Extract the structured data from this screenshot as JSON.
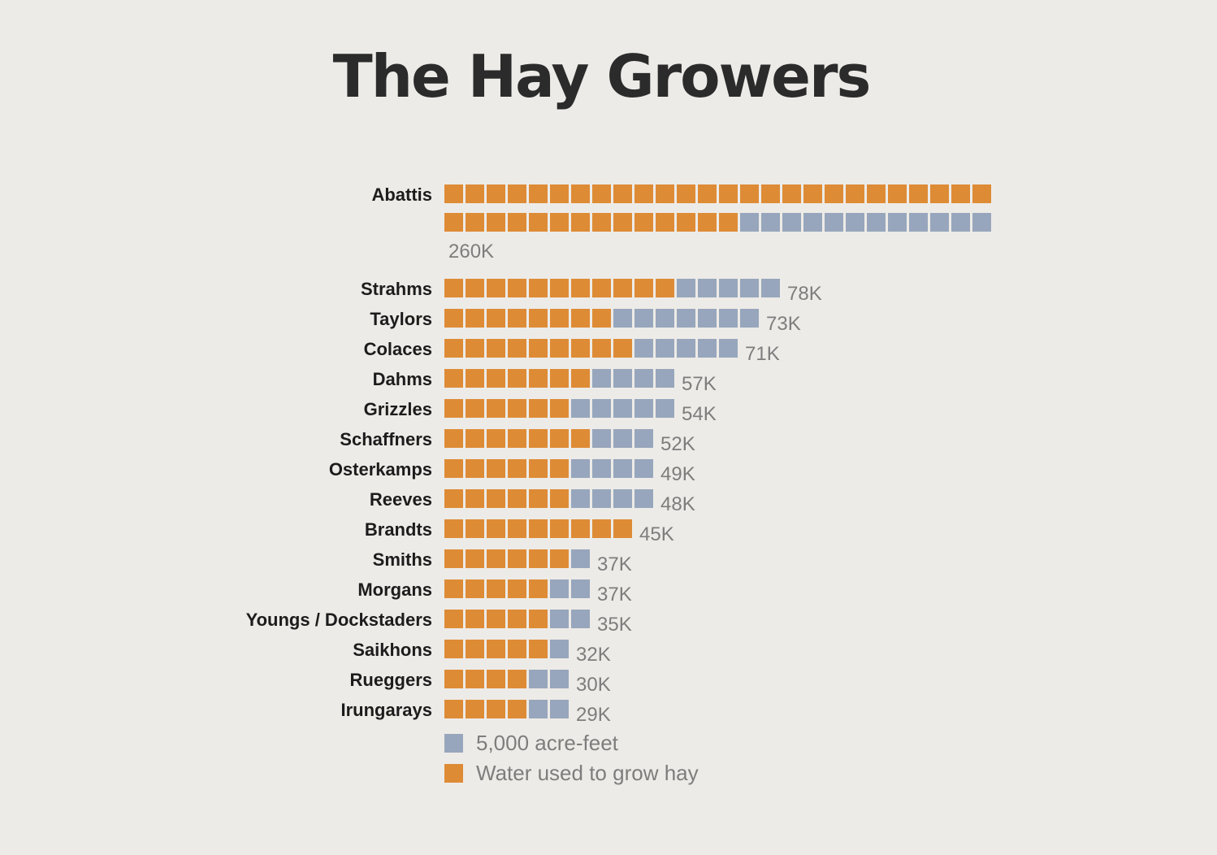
{
  "colors": {
    "hay": "#de8b36",
    "total": "#97a6bc",
    "background": "#edebe7"
  },
  "chart_data": {
    "type": "waffle-bar",
    "title": "The Hay Growers",
    "unit": "5,000 acre-feet per square",
    "categories": [
      "Abattis",
      "Strahms",
      "Taylors",
      "Colaces",
      "Dahms",
      "Grizzles",
      "Schaffners",
      "Osterkamps",
      "Reeves",
      "Brandts",
      "Smiths",
      "Morgans",
      "Youngs / Dockstaders",
      "Saikhons",
      "Rueggers",
      "Irungarays"
    ],
    "total_labels": [
      "260K",
      "78K",
      "73K",
      "71K",
      "57K",
      "54K",
      "52K",
      "49K",
      "48K",
      "45K",
      "37K",
      "37K",
      "35K",
      "32K",
      "30K",
      "29K"
    ],
    "total_values": [
      260,
      78,
      73,
      71,
      57,
      54,
      52,
      49,
      48,
      45,
      37,
      37,
      35,
      32,
      30,
      29
    ],
    "series": [
      {
        "name": "5,000 acre-feet",
        "squares": [
          52,
          16,
          15,
          14,
          11,
          11,
          10,
          10,
          10,
          9,
          7,
          7,
          7,
          6,
          6,
          6
        ]
      },
      {
        "name": "Water used to grow hay",
        "squares": [
          40,
          11,
          8,
          9,
          7,
          6,
          7,
          6,
          6,
          9,
          6,
          5,
          5,
          5,
          4,
          4
        ]
      }
    ],
    "legend": [
      {
        "label": "5,000 acre-feet",
        "color": "#97a6bc"
      },
      {
        "label": "Water used to grow hay",
        "color": "#de8b36"
      }
    ],
    "legend_position": "bottom-left"
  }
}
